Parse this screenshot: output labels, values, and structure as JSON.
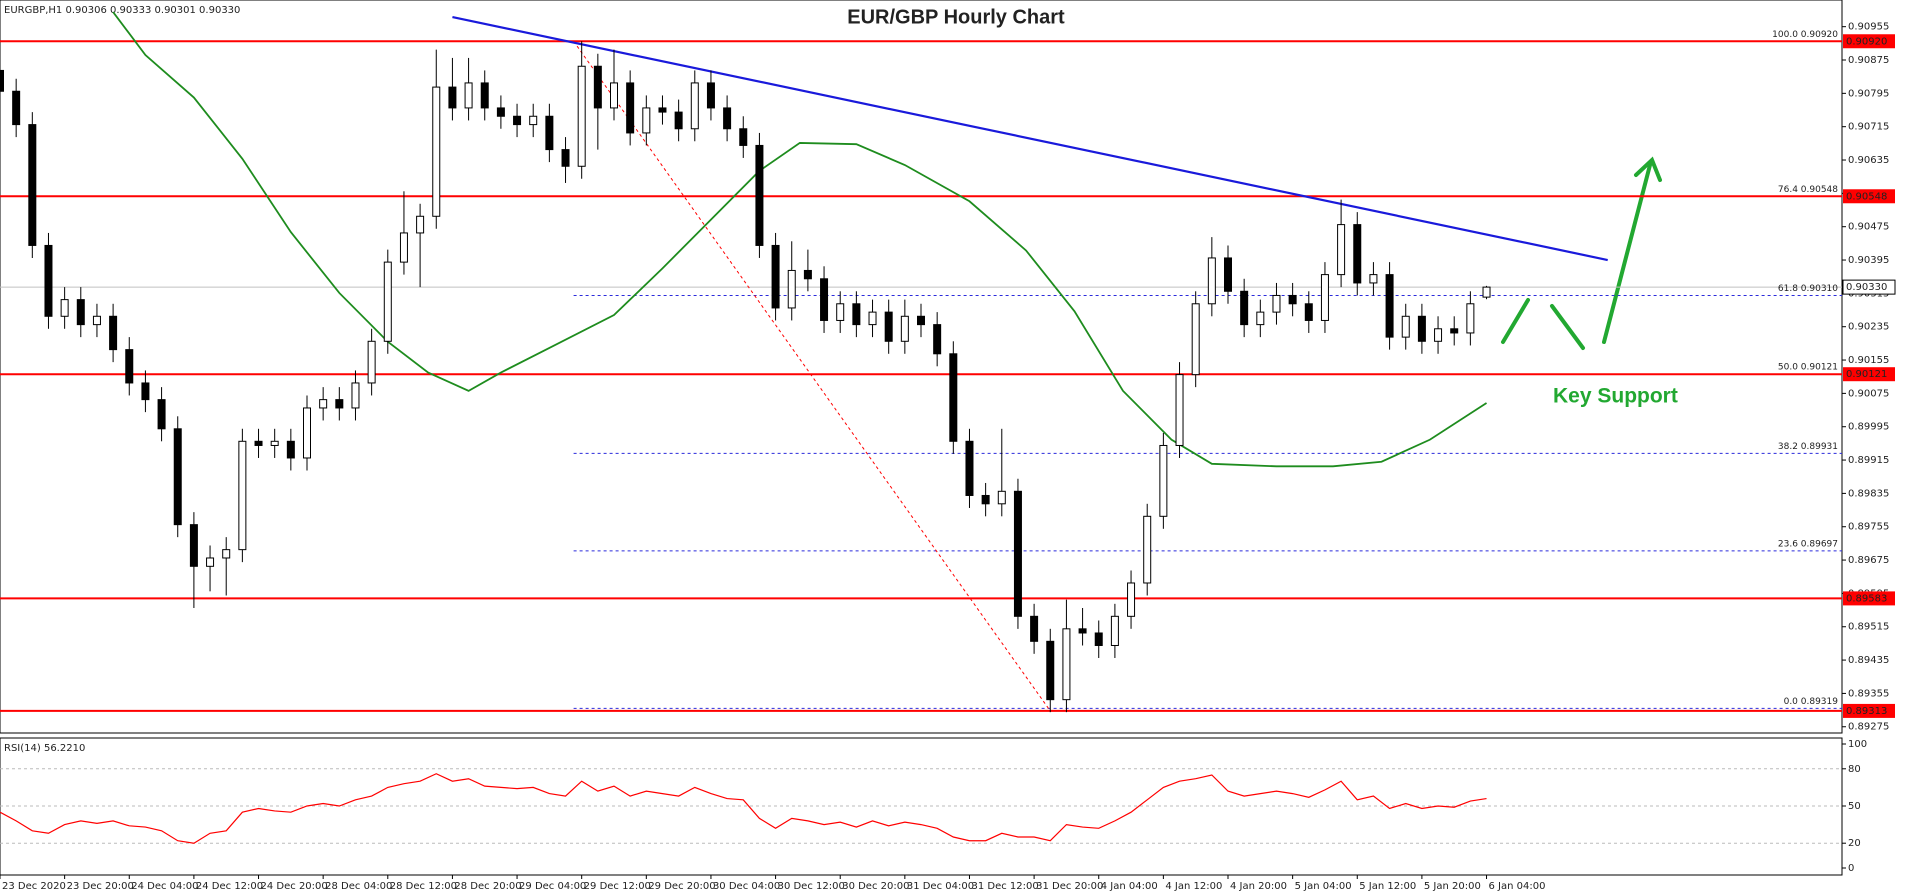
{
  "chart_data": {
    "type": "candlestick",
    "title": "EUR/GBP Hourly Chart",
    "symbol_info": "EURGBP,H1  0.90306 0.90333 0.90301 0.90330",
    "annotation": "Key Support",
    "xlim": [
      0,
      228
    ],
    "xticks": [
      {
        "value": 0,
        "label": "23 Dec 2020"
      },
      {
        "value": 8,
        "label": "23 Dec 20:00"
      },
      {
        "value": 16,
        "label": "24 Dec 04:00"
      },
      {
        "value": 24,
        "label": "24 Dec 12:00"
      },
      {
        "value": 32,
        "label": "24 Dec 20:00"
      },
      {
        "value": 40,
        "label": "28 Dec 04:00"
      },
      {
        "value": 48,
        "label": "28 Dec 12:00"
      },
      {
        "value": 56,
        "label": "28 Dec 20:00"
      },
      {
        "value": 64,
        "label": "29 Dec 04:00"
      },
      {
        "value": 72,
        "label": "29 Dec 12:00"
      },
      {
        "value": 80,
        "label": "29 Dec 20:00"
      },
      {
        "value": 88,
        "label": "30 Dec 04:00"
      },
      {
        "value": 96,
        "label": "30 Dec 12:00"
      },
      {
        "value": 104,
        "label": "30 Dec 20:00"
      },
      {
        "value": 112,
        "label": "31 Dec 04:00"
      },
      {
        "value": 120,
        "label": "31 Dec 12:00"
      },
      {
        "value": 128,
        "label": "31 Dec 20:00"
      },
      {
        "value": 136,
        "label": "4 Jan 04:00"
      },
      {
        "value": 144,
        "label": "4 Jan 12:00"
      },
      {
        "value": 152,
        "label": "4 Jan 20:00"
      },
      {
        "value": 160,
        "label": "5 Jan 04:00"
      },
      {
        "value": 168,
        "label": "5 Jan 12:00"
      },
      {
        "value": 176,
        "label": "5 Jan 20:00"
      },
      {
        "value": 184,
        "label": "6 Jan 04:00"
      }
    ],
    "ylim": [
      0.8926,
      0.91019
    ],
    "yticks": [
      0.90955,
      0.90875,
      0.90795,
      0.90715,
      0.90635,
      0.90555,
      0.90475,
      0.90395,
      0.90315,
      0.90235,
      0.90155,
      0.90075,
      0.89995,
      0.89915,
      0.89835,
      0.89755,
      0.89675,
      0.89595,
      0.89515,
      0.89435,
      0.89355,
      0.89275
    ],
    "candle_hours": 2,
    "ohlc": [
      [
        0.9085,
        0.9088,
        0.9077,
        0.908
      ],
      [
        0.908,
        0.9083,
        0.9069,
        0.9072
      ],
      [
        0.9072,
        0.9075,
        0.904,
        0.9043
      ],
      [
        0.9043,
        0.9046,
        0.9023,
        0.9026
      ],
      [
        0.9026,
        0.9033,
        0.9023,
        0.903
      ],
      [
        0.903,
        0.9033,
        0.9021,
        0.9024
      ],
      [
        0.9024,
        0.9029,
        0.9021,
        0.9026
      ],
      [
        0.9026,
        0.9029,
        0.9015,
        0.9018
      ],
      [
        0.9018,
        0.9021,
        0.9007,
        0.901
      ],
      [
        0.901,
        0.9013,
        0.9003,
        0.9006
      ],
      [
        0.9006,
        0.9009,
        0.8996,
        0.8999
      ],
      [
        0.8999,
        0.9002,
        0.8973,
        0.8976
      ],
      [
        0.8976,
        0.8979,
        0.8956,
        0.8966
      ],
      [
        0.8966,
        0.8971,
        0.896,
        0.8968
      ],
      [
        0.8968,
        0.8973,
        0.8959,
        0.897
      ],
      [
        0.897,
        0.8999,
        0.8967,
        0.8996
      ],
      [
        0.8996,
        0.8999,
        0.8992,
        0.8995
      ],
      [
        0.8995,
        0.8999,
        0.8992,
        0.8996
      ],
      [
        0.8996,
        0.8999,
        0.8989,
        0.8992
      ],
      [
        0.8992,
        0.9007,
        0.8989,
        0.9004
      ],
      [
        0.9004,
        0.9009,
        0.9001,
        0.9006
      ],
      [
        0.9006,
        0.9009,
        0.9001,
        0.9004
      ],
      [
        0.9004,
        0.9013,
        0.9001,
        0.901
      ],
      [
        0.901,
        0.9023,
        0.9007,
        0.902
      ],
      [
        0.902,
        0.9042,
        0.9017,
        0.9039
      ],
      [
        0.9039,
        0.9056,
        0.9036,
        0.9046
      ],
      [
        0.9046,
        0.9053,
        0.9033,
        0.905
      ],
      [
        0.905,
        0.909,
        0.9047,
        0.9081
      ],
      [
        0.9081,
        0.9088,
        0.9073,
        0.9076
      ],
      [
        0.9076,
        0.9088,
        0.9073,
        0.9082
      ],
      [
        0.9082,
        0.9085,
        0.9073,
        0.9076
      ],
      [
        0.9076,
        0.9079,
        0.9071,
        0.9074
      ],
      [
        0.9074,
        0.9077,
        0.9069,
        0.9072
      ],
      [
        0.9072,
        0.9077,
        0.9069,
        0.9074
      ],
      [
        0.9074,
        0.9077,
        0.9063,
        0.9066
      ],
      [
        0.9066,
        0.9069,
        0.9058,
        0.9062
      ],
      [
        0.9062,
        0.9092,
        0.9059,
        0.9086
      ],
      [
        0.9086,
        0.9089,
        0.9066,
        0.9076
      ],
      [
        0.9076,
        0.909,
        0.9073,
        0.9082
      ],
      [
        0.9082,
        0.9085,
        0.9067,
        0.907
      ],
      [
        0.907,
        0.9079,
        0.9067,
        0.9076
      ],
      [
        0.9076,
        0.9079,
        0.9072,
        0.9075
      ],
      [
        0.9075,
        0.9078,
        0.9068,
        0.9071
      ],
      [
        0.9071,
        0.9085,
        0.9068,
        0.9082
      ],
      [
        0.9082,
        0.9085,
        0.9073,
        0.9076
      ],
      [
        0.9076,
        0.9079,
        0.9068,
        0.9071
      ],
      [
        0.9071,
        0.9074,
        0.9064,
        0.9067
      ],
      [
        0.9067,
        0.907,
        0.904,
        0.9043
      ],
      [
        0.9043,
        0.9046,
        0.9025,
        0.9028
      ],
      [
        0.9028,
        0.9044,
        0.9025,
        0.9037
      ],
      [
        0.9037,
        0.9042,
        0.9032,
        0.9035
      ],
      [
        0.9035,
        0.9038,
        0.9022,
        0.9025
      ],
      [
        0.9025,
        0.9032,
        0.9022,
        0.9029
      ],
      [
        0.9029,
        0.9032,
        0.9021,
        0.9024
      ],
      [
        0.9024,
        0.903,
        0.9021,
        0.9027
      ],
      [
        0.9027,
        0.903,
        0.9017,
        0.902
      ],
      [
        0.902,
        0.903,
        0.9017,
        0.9026
      ],
      [
        0.9026,
        0.9029,
        0.9021,
        0.9024
      ],
      [
        0.9024,
        0.9027,
        0.9014,
        0.9017
      ],
      [
        0.9017,
        0.902,
        0.8993,
        0.8996
      ],
      [
        0.8996,
        0.8999,
        0.898,
        0.8983
      ],
      [
        0.8983,
        0.8986,
        0.8978,
        0.8981
      ],
      [
        0.8981,
        0.8999,
        0.8978,
        0.8984
      ],
      [
        0.8984,
        0.8987,
        0.8951,
        0.8954
      ],
      [
        0.8954,
        0.8957,
        0.8945,
        0.8948
      ],
      [
        0.8948,
        0.8951,
        0.8931,
        0.8934
      ],
      [
        0.8934,
        0.8958,
        0.8931,
        0.8951
      ],
      [
        0.8951,
        0.8956,
        0.8947,
        0.895
      ],
      [
        0.895,
        0.8953,
        0.8944,
        0.8947
      ],
      [
        0.8947,
        0.8957,
        0.8944,
        0.8954
      ],
      [
        0.8954,
        0.8965,
        0.8951,
        0.8962
      ],
      [
        0.8962,
        0.8981,
        0.8959,
        0.8978
      ],
      [
        0.8978,
        0.8998,
        0.8975,
        0.8995
      ],
      [
        0.8995,
        0.9015,
        0.8992,
        0.9012
      ],
      [
        0.9012,
        0.9032,
        0.9009,
        0.9029
      ],
      [
        0.9029,
        0.9045,
        0.9026,
        0.904
      ],
      [
        0.904,
        0.9043,
        0.9029,
        0.9032
      ],
      [
        0.9032,
        0.9035,
        0.9021,
        0.9024
      ],
      [
        0.9024,
        0.903,
        0.9021,
        0.9027
      ],
      [
        0.9027,
        0.9034,
        0.9024,
        0.9031
      ],
      [
        0.9031,
        0.9034,
        0.9026,
        0.9029
      ],
      [
        0.9029,
        0.9032,
        0.9022,
        0.9025
      ],
      [
        0.9025,
        0.9039,
        0.9022,
        0.9036
      ],
      [
        0.9036,
        0.9054,
        0.9033,
        0.9048
      ],
      [
        0.9048,
        0.9051,
        0.9031,
        0.9034
      ],
      [
        0.9034,
        0.9039,
        0.9031,
        0.9036
      ],
      [
        0.9036,
        0.9039,
        0.9018,
        0.9021
      ],
      [
        0.9021,
        0.9029,
        0.9018,
        0.9026
      ],
      [
        0.9026,
        0.9029,
        0.9017,
        0.902
      ],
      [
        0.902,
        0.9026,
        0.9017,
        0.9023
      ],
      [
        0.9023,
        0.9026,
        0.9019,
        0.9022
      ],
      [
        0.9022,
        0.9032,
        0.9019,
        0.9029
      ],
      [
        0.90306,
        0.90333,
        0.90301,
        0.9033
      ]
    ],
    "candle_color": "#000000",
    "levels": [
      {
        "value": 0.9092,
        "label": "0.90920"
      },
      {
        "value": 0.90548,
        "label": "0.90548"
      },
      {
        "value": 0.90121,
        "label": "0.90121"
      },
      {
        "value": 0.89583,
        "label": "0.89583"
      },
      {
        "value": 0.89313,
        "label": "0.89313"
      }
    ],
    "level_color": "#ff0000",
    "fib_start": 71,
    "fib_levels": [
      {
        "value": 0.9092,
        "label": "100.0 0.90920"
      },
      {
        "value": 0.90548,
        "label": "76.4 0.90548"
      },
      {
        "value": 0.9031,
        "label": "61.8 0.90310"
      },
      {
        "value": 0.90121,
        "label": "50.0 0.90121"
      },
      {
        "value": 0.89931,
        "label": "38.2 0.89931"
      },
      {
        "value": 0.89697,
        "label": "23.6 0.89697"
      },
      {
        "value": 0.89319,
        "label": "0.0 0.89319"
      }
    ],
    "fib_color": "#2b2bdb",
    "fib_line": {
      "color": "#ff0000",
      "x": [
        71,
        130
      ],
      "values": [
        0.9092,
        0.89313
      ]
    },
    "current_price": {
      "value": 0.9033,
      "label": "0.90330"
    },
    "trendline": {
      "color": "#1a1adb",
      "x": [
        56,
        199
      ],
      "values": [
        0.90978,
        0.90395
      ]
    },
    "moving_average": {
      "color": "#1e8c1e",
      "x": [
        14,
        18,
        24,
        30,
        36,
        42,
        48,
        53,
        58,
        62,
        68,
        76,
        82,
        88,
        94,
        99,
        106,
        112,
        120,
        127,
        133,
        139,
        145,
        150,
        158,
        165,
        171,
        177,
        184
      ],
      "values": [
        0.9099,
        0.90887,
        0.90785,
        0.90638,
        0.90462,
        0.90316,
        0.90199,
        0.90125,
        0.90081,
        0.90125,
        0.90184,
        0.90263,
        0.90375,
        0.90492,
        0.90609,
        0.90676,
        0.90673,
        0.90623,
        0.90536,
        0.90418,
        0.90272,
        0.90081,
        0.89964,
        0.89906,
        0.899,
        0.899,
        0.89911,
        0.89964,
        0.90052
      ]
    },
    "rsi": {
      "label": "RSI(14) 56.2210",
      "color": "#ff0000",
      "ylim": [
        0,
        100
      ],
      "yticks": [
        100,
        80,
        50,
        20,
        0
      ],
      "levels": [
        80,
        50,
        20
      ],
      "values": [
        45,
        38,
        30,
        28,
        35,
        38,
        36,
        38,
        34,
        33,
        30,
        22,
        20,
        28,
        30,
        45,
        48,
        46,
        45,
        50,
        52,
        50,
        55,
        58,
        65,
        68,
        70,
        76,
        70,
        72,
        66,
        65,
        64,
        65,
        60,
        58,
        70,
        62,
        66,
        58,
        62,
        60,
        58,
        65,
        60,
        56,
        55,
        40,
        32,
        40,
        38,
        35,
        37,
        33,
        38,
        34,
        37,
        35,
        32,
        25,
        22,
        22,
        28,
        25,
        25,
        22,
        35,
        33,
        32,
        38,
        45,
        55,
        65,
        70,
        72,
        75,
        62,
        58,
        60,
        62,
        60,
        57,
        63,
        70,
        55,
        58,
        48,
        52,
        48,
        50,
        49,
        54,
        56
      ]
    }
  }
}
